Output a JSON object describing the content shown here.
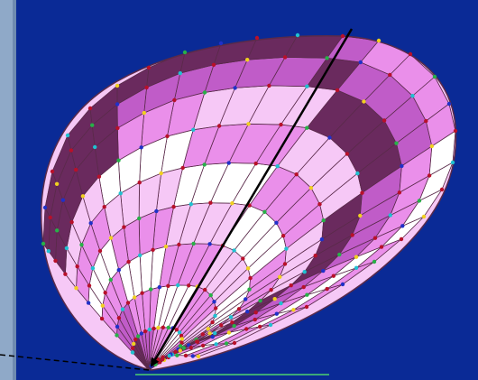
{
  "colors": {
    "background": "#0a2a96",
    "left_panel": "#8fa9c8",
    "left_panel_dark": "#6f8bb0",
    "mesh_light": "#ffffff",
    "mesh_pale": "#f6c8f6",
    "mesh_pink": "#ea8fea",
    "mesh_magenta": "#c05cc8",
    "mesh_dark": "#6a2a5e",
    "mesh_line": "#5a2a4a",
    "axis_arrow": "#000000",
    "reference_line": "#000000",
    "base_rule": "#3ca878",
    "node_red": "#b8102a",
    "node_green": "#28b048",
    "node_yellow": "#f0d020",
    "node_cyan": "#20c0d0",
    "node_blue": "#2030c8"
  },
  "icons": {
    "arrow": "arrowhead-icon"
  }
}
